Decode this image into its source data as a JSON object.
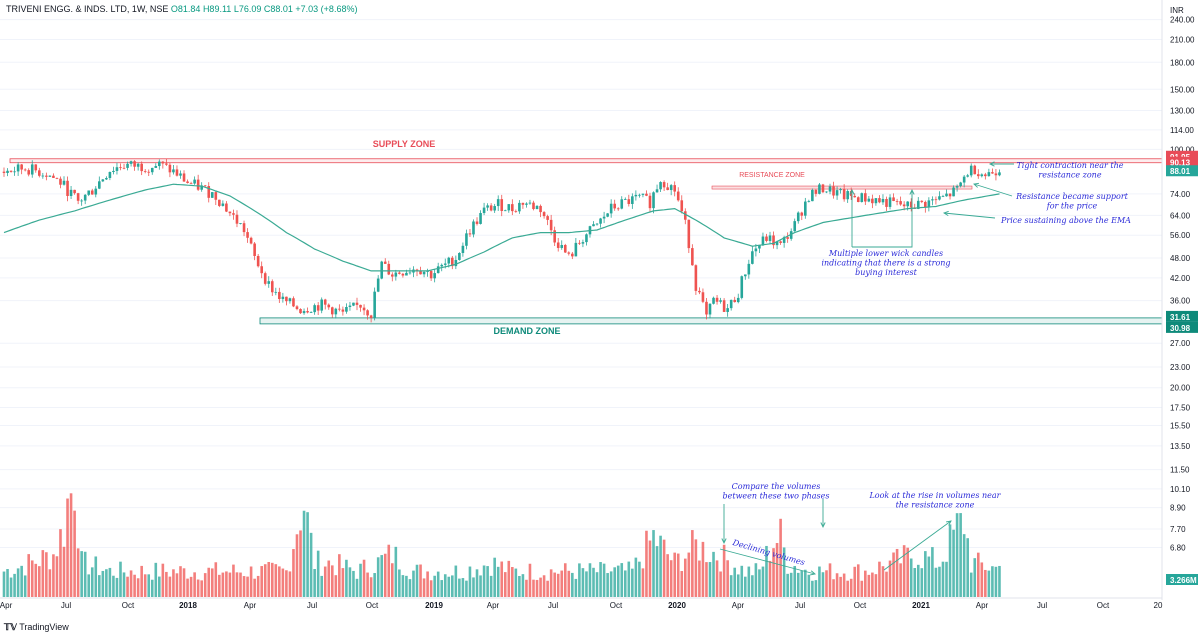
{
  "header": {
    "symbol": "TRIVENI ENGG. & INDS. LTD, 1W, NSE",
    "open": "O81.84",
    "high": "H89.11",
    "low": "L76.09",
    "close": "C88.01",
    "change": "+7.03 (+8.68%)"
  },
  "currency": "INR",
  "branding": "TradingView",
  "colors": {
    "up": "#26a69a",
    "down": "#ef5350",
    "ema": "#3aaa94",
    "annotation": "#2b2bd8",
    "supply": "#e84c58",
    "demand": "#0e8a7a"
  },
  "price_axis": {
    "ticks": [
      "240.00",
      "210.00",
      "180.00",
      "150.00",
      "130.00",
      "114.00",
      "100.00",
      "88.01",
      "74.00",
      "64.00",
      "56.00",
      "48.00",
      "42.00",
      "36.00",
      "31.61",
      "30.98",
      "27.00",
      "23.00",
      "20.00",
      "17.50",
      "15.50",
      "13.50",
      "11.50",
      "10.10",
      "8.90",
      "7.70",
      "6.80",
      "3.266M"
    ],
    "badges": [
      {
        "label": "91.95",
        "color": "#e84c58"
      },
      {
        "label": "90.13",
        "color": "#e84c58"
      },
      {
        "label": "88.01",
        "color": "#26a69a"
      },
      {
        "label": "31.61",
        "color": "#0e8a7a"
      },
      {
        "label": "30.98",
        "color": "#0e8a7a"
      },
      {
        "label": "3.266M",
        "color": "#26a69a"
      }
    ]
  },
  "time_axis": {
    "ticks": [
      "Apr",
      "Jul",
      "Oct",
      "2018",
      "Apr",
      "Jul",
      "Oct",
      "2019",
      "Apr",
      "Jul",
      "Oct",
      "2020",
      "Apr",
      "Jul",
      "Oct",
      "2021",
      "Apr",
      "Jul",
      "Oct",
      "20"
    ]
  },
  "annotations": {
    "supply_zone": "SUPPLY ZONE",
    "demand_zone": "DEMAND ZONE",
    "resistance_zone": "RESISTANCE ZONE",
    "tight_contraction": [
      "Tight contraction near the",
      "resistance zone"
    ],
    "resistance_support": [
      "Resistance became support",
      "for the price"
    ],
    "price_ema": "Price sustaining above the EMA",
    "lower_wick": [
      "Multiple lower wick candles",
      "indicating that there is a strong",
      "buying interest"
    ],
    "compare_volumes": [
      "Compare the volumes",
      "between these two phases"
    ],
    "declining_volumes": "Declining volumes",
    "rise_volumes": [
      "Look at the rise in volumes near",
      "the resistance zone"
    ]
  },
  "chart_data": {
    "type": "candlestick",
    "interval": "1W",
    "y_scale": "log",
    "ylim": [
      4.9,
      265
    ],
    "x_range": [
      "2017-04",
      "2022-01"
    ],
    "supply_zone": [
      90.13,
      91.95
    ],
    "demand_zone": [
      30.98,
      31.61
    ],
    "resistance_level": 77,
    "last_close": 88.01,
    "last_volume": "3.266M",
    "price_path": [
      [
        0,
        86
      ],
      [
        6,
        88
      ],
      [
        12,
        85
      ],
      [
        16,
        80
      ],
      [
        21,
        70
      ],
      [
        25,
        76
      ],
      [
        30,
        87
      ],
      [
        34,
        90
      ],
      [
        40,
        89
      ],
      [
        44,
        90
      ],
      [
        48,
        86
      ],
      [
        52,
        80
      ],
      [
        56,
        77
      ],
      [
        60,
        73
      ],
      [
        64,
        65
      ],
      [
        68,
        58
      ],
      [
        71,
        48
      ],
      [
        75,
        40
      ],
      [
        79,
        36
      ],
      [
        84,
        34
      ],
      [
        90,
        35
      ],
      [
        96,
        33
      ],
      [
        101,
        35
      ],
      [
        104,
        33
      ],
      [
        107,
        46
      ],
      [
        110,
        43
      ],
      [
        113,
        44
      ],
      [
        117,
        45
      ],
      [
        121,
        43
      ],
      [
        124,
        45
      ],
      [
        128,
        48
      ],
      [
        132,
        58
      ],
      [
        136,
        66
      ],
      [
        140,
        69
      ],
      [
        144,
        67
      ],
      [
        147,
        70
      ],
      [
        152,
        67
      ],
      [
        156,
        55
      ],
      [
        160,
        48
      ],
      [
        164,
        55
      ],
      [
        168,
        60
      ],
      [
        172,
        67
      ],
      [
        176,
        70
      ],
      [
        180,
        72
      ],
      [
        183,
        70
      ],
      [
        186,
        82
      ],
      [
        190,
        76
      ],
      [
        193,
        60
      ],
      [
        196,
        40
      ],
      [
        199,
        32
      ],
      [
        201,
        36
      ],
      [
        205,
        34
      ],
      [
        208,
        38
      ],
      [
        212,
        50
      ],
      [
        216,
        55
      ],
      [
        220,
        52
      ],
      [
        224,
        60
      ],
      [
        228,
        73
      ],
      [
        232,
        77
      ],
      [
        238,
        73
      ],
      [
        244,
        72
      ],
      [
        250,
        70
      ],
      [
        256,
        68
      ],
      [
        262,
        70
      ],
      [
        266,
        72
      ],
      [
        270,
        76
      ],
      [
        273,
        86
      ],
      [
        275,
        88
      ],
      [
        278,
        84
      ],
      [
        282,
        88.01
      ]
    ],
    "ema_path": [
      [
        0,
        57
      ],
      [
        10,
        62
      ],
      [
        20,
        66
      ],
      [
        30,
        71
      ],
      [
        40,
        76
      ],
      [
        48,
        79
      ],
      [
        56,
        78
      ],
      [
        64,
        73
      ],
      [
        72,
        65
      ],
      [
        80,
        57
      ],
      [
        88,
        51
      ],
      [
        96,
        47
      ],
      [
        104,
        44
      ],
      [
        112,
        44
      ],
      [
        120,
        44
      ],
      [
        128,
        46
      ],
      [
        136,
        50
      ],
      [
        144,
        55
      ],
      [
        152,
        57
      ],
      [
        160,
        57
      ],
      [
        168,
        58
      ],
      [
        176,
        62
      ],
      [
        184,
        66
      ],
      [
        190,
        67
      ],
      [
        196,
        62
      ],
      [
        204,
        55
      ],
      [
        212,
        52
      ],
      [
        218,
        53
      ],
      [
        224,
        57
      ],
      [
        232,
        61
      ],
      [
        240,
        63
      ],
      [
        248,
        65
      ],
      [
        256,
        67
      ],
      [
        264,
        68
      ],
      [
        272,
        71
      ],
      [
        282,
        74
      ]
    ],
    "volume_path": [
      [
        0,
        3
      ],
      [
        8,
        4
      ],
      [
        14,
        5
      ],
      [
        17,
        8
      ],
      [
        18,
        11
      ],
      [
        20,
        13.5
      ],
      [
        22,
        4
      ],
      [
        30,
        3
      ],
      [
        40,
        3
      ],
      [
        50,
        3
      ],
      [
        60,
        3
      ],
      [
        70,
        3
      ],
      [
        80,
        3
      ],
      [
        84,
        10
      ],
      [
        85,
        11
      ],
      [
        88,
        4
      ],
      [
        92,
        4
      ],
      [
        100,
        3
      ],
      [
        106,
        4
      ],
      [
        110,
        5
      ],
      [
        116,
        3
      ],
      [
        124,
        3
      ],
      [
        130,
        3
      ],
      [
        138,
        4
      ],
      [
        144,
        3
      ],
      [
        152,
        3
      ],
      [
        160,
        3
      ],
      [
        170,
        3
      ],
      [
        178,
        3
      ],
      [
        184,
        7
      ],
      [
        190,
        4
      ],
      [
        196,
        6
      ],
      [
        202,
        5
      ],
      [
        206,
        4
      ],
      [
        210,
        3
      ],
      [
        214,
        3
      ],
      [
        218,
        6.5
      ],
      [
        220,
        7
      ],
      [
        222,
        4
      ],
      [
        228,
        3
      ],
      [
        234,
        3
      ],
      [
        244,
        3
      ],
      [
        252,
        4
      ],
      [
        258,
        5
      ],
      [
        265,
        4
      ],
      [
        270,
        8
      ],
      [
        272,
        8.9
      ],
      [
        274,
        4
      ],
      [
        282,
        3.266
      ]
    ]
  }
}
